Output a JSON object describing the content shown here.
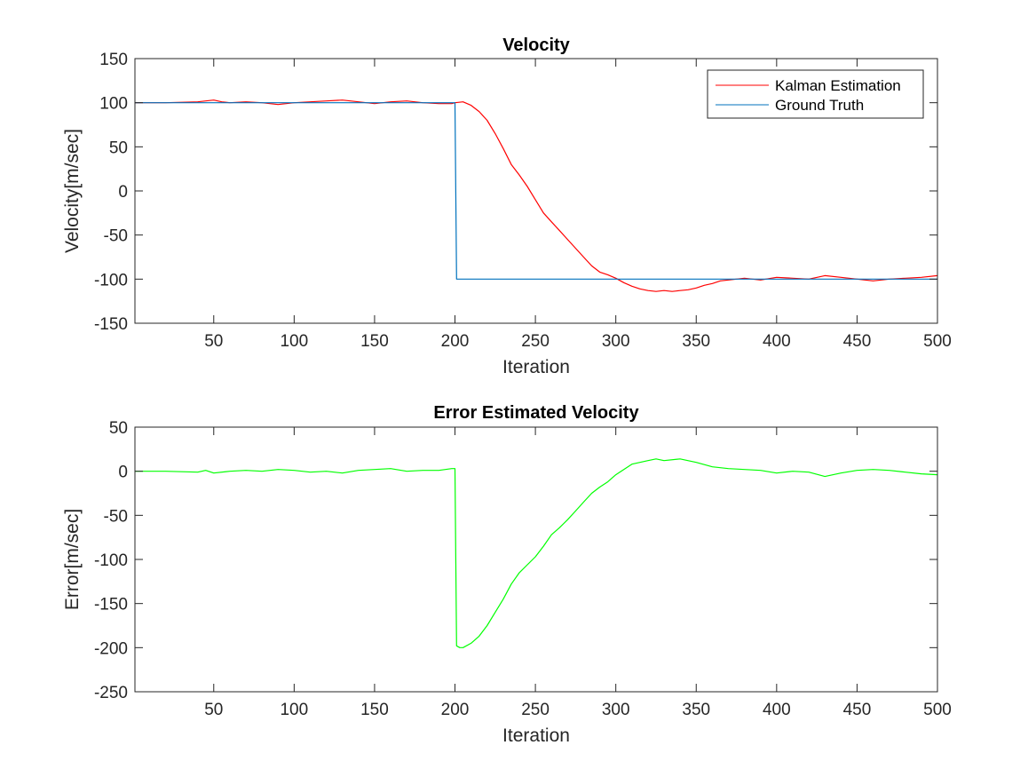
{
  "chart_data": [
    {
      "type": "line",
      "title": "Velocity",
      "xlabel": "Iteration",
      "ylabel": "Velocity[m/sec]",
      "xlim": [
        1,
        500
      ],
      "ylim": [
        -150,
        150
      ],
      "xticks": [
        50,
        100,
        150,
        200,
        250,
        300,
        350,
        400,
        450,
        500
      ],
      "yticks": [
        -150,
        -100,
        -50,
        0,
        50,
        100,
        150
      ],
      "grid": false,
      "legend_position": "top-right",
      "series": [
        {
          "name": "Kalman Estimation",
          "color": "#ff0000",
          "x": [
            1,
            20,
            40,
            45,
            50,
            55,
            60,
            70,
            80,
            90,
            100,
            110,
            120,
            130,
            140,
            150,
            160,
            170,
            180,
            190,
            198,
            200,
            205,
            210,
            215,
            220,
            225,
            230,
            235,
            240,
            245,
            250,
            255,
            260,
            265,
            270,
            275,
            280,
            285,
            290,
            295,
            300,
            305,
            310,
            315,
            320,
            325,
            330,
            335,
            340,
            345,
            350,
            355,
            360,
            365,
            370,
            380,
            390,
            400,
            410,
            420,
            430,
            440,
            450,
            460,
            470,
            480,
            490,
            500
          ],
          "y": [
            100,
            100,
            101,
            102,
            103,
            101,
            100,
            101,
            100,
            98,
            100,
            101,
            102,
            103,
            101,
            99,
            101,
            102,
            100,
            99,
            99,
            100,
            101,
            97,
            90,
            80,
            65,
            48,
            30,
            18,
            5,
            -10,
            -25,
            -35,
            -45,
            -55,
            -65,
            -75,
            -85,
            -92,
            -95,
            -99,
            -104,
            -108,
            -111,
            -113,
            -114,
            -113,
            -114,
            -113,
            -112,
            -110,
            -107,
            -105,
            -102,
            -101,
            -99,
            -101,
            -98,
            -99,
            -100,
            -96,
            -98,
            -100,
            -102,
            -100,
            -99,
            -98,
            -96
          ]
        },
        {
          "name": "Ground Truth",
          "color": "#0072bd",
          "x": [
            1,
            200,
            201,
            500
          ],
          "y": [
            100,
            100,
            -100,
            -100
          ]
        }
      ]
    },
    {
      "type": "line",
      "title": "Error Estimated Velocity",
      "xlabel": "Iteration",
      "ylabel": "Error[m/sec]",
      "xlim": [
        1,
        500
      ],
      "ylim": [
        -250,
        50
      ],
      "xticks": [
        50,
        100,
        150,
        200,
        250,
        300,
        350,
        400,
        450,
        500
      ],
      "yticks": [
        -250,
        -200,
        -150,
        -100,
        -50,
        0,
        50
      ],
      "grid": false,
      "series": [
        {
          "color": "#00ff00",
          "x": [
            1,
            20,
            40,
            45,
            50,
            60,
            70,
            80,
            90,
            100,
            110,
            120,
            130,
            140,
            150,
            160,
            170,
            180,
            190,
            198,
            200,
            201,
            203,
            205,
            210,
            215,
            220,
            225,
            230,
            235,
            240,
            245,
            250,
            255,
            260,
            265,
            270,
            275,
            280,
            285,
            290,
            295,
            300,
            310,
            320,
            325,
            330,
            340,
            350,
            360,
            370,
            380,
            390,
            400,
            410,
            420,
            430,
            440,
            450,
            460,
            470,
            480,
            490,
            500
          ],
          "y": [
            0,
            0,
            -1,
            1,
            -2,
            0,
            1,
            0,
            2,
            1,
            -1,
            0,
            -2,
            1,
            2,
            3,
            0,
            1,
            1,
            3,
            3,
            -198,
            -200,
            -200,
            -195,
            -187,
            -175,
            -160,
            -145,
            -128,
            -115,
            -106,
            -97,
            -85,
            -72,
            -64,
            -55,
            -45,
            -35,
            -25,
            -18,
            -12,
            -4,
            8,
            12,
            14,
            12,
            14,
            10,
            5,
            3,
            2,
            1,
            -2,
            0,
            -1,
            -6,
            -2,
            1,
            2,
            1,
            -1,
            -3,
            -4
          ]
        }
      ]
    }
  ]
}
